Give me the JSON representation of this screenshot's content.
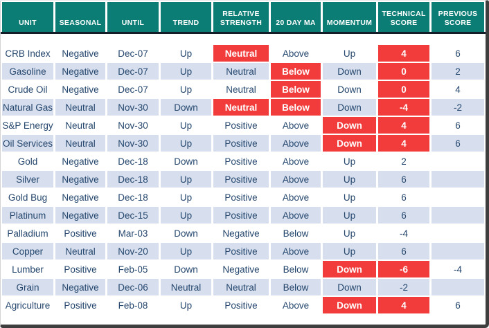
{
  "chart_data": {
    "type": "table",
    "columns": [
      {
        "key": "unit",
        "label": "UNIT"
      },
      {
        "key": "seasonal",
        "label": "SEASONAL"
      },
      {
        "key": "until",
        "label": "UNTIL"
      },
      {
        "key": "trend",
        "label": "TREND"
      },
      {
        "key": "relative_strength",
        "label": "RELATIVE STRENGTH"
      },
      {
        "key": "twenty_day_ma",
        "label": "20 DAY MA"
      },
      {
        "key": "momentum",
        "label": "MOMENTUM"
      },
      {
        "key": "technical_score",
        "label": "TECHNICAL SCORE"
      },
      {
        "key": "previous_score",
        "label": "PREVIOUS SCORE"
      }
    ],
    "rows": [
      {
        "unit": "CRB Index",
        "seasonal": "Negative",
        "until": "Dec-07",
        "trend": "Up",
        "relative_strength": "Neutral",
        "twenty_day_ma": "Above",
        "momentum": "Up",
        "technical_score": 4,
        "previous_score": 6,
        "highlights": [
          "relative_strength",
          "technical_score"
        ]
      },
      {
        "unit": "Gasoline",
        "seasonal": "Negative",
        "until": "Dec-07",
        "trend": "Up",
        "relative_strength": "Neutral",
        "twenty_day_ma": "Below",
        "momentum": "Down",
        "technical_score": 0,
        "previous_score": 2,
        "highlights": [
          "twenty_day_ma",
          "technical_score"
        ]
      },
      {
        "unit": "Crude Oil",
        "seasonal": "Negative",
        "until": "Dec-07",
        "trend": "Up",
        "relative_strength": "Neutral",
        "twenty_day_ma": "Below",
        "momentum": "Down",
        "technical_score": 0,
        "previous_score": 4,
        "highlights": [
          "twenty_day_ma",
          "technical_score"
        ]
      },
      {
        "unit": "Natural Gas",
        "seasonal": "Neutral",
        "until": "Nov-30",
        "trend": "Down",
        "relative_strength": "Neutral",
        "twenty_day_ma": "Below",
        "momentum": "Down",
        "technical_score": -4,
        "previous_score": -2,
        "highlights": [
          "relative_strength",
          "twenty_day_ma",
          "technical_score"
        ]
      },
      {
        "unit": "S&P Energy",
        "seasonal": "Neutral",
        "until": "Nov-30",
        "trend": "Up",
        "relative_strength": "Positive",
        "twenty_day_ma": "Above",
        "momentum": "Down",
        "technical_score": 4,
        "previous_score": 6,
        "highlights": [
          "momentum",
          "technical_score"
        ]
      },
      {
        "unit": "Oil Services",
        "seasonal": "Neutral",
        "until": "Nov-30",
        "trend": "Up",
        "relative_strength": "Positive",
        "twenty_day_ma": "Above",
        "momentum": "Down",
        "technical_score": 4,
        "previous_score": 6,
        "highlights": [
          "momentum",
          "technical_score"
        ]
      },
      {
        "unit": "Gold",
        "seasonal": "Negative",
        "until": "Dec-18",
        "trend": "Down",
        "relative_strength": "Positive",
        "twenty_day_ma": "Above",
        "momentum": "Up",
        "technical_score": 2,
        "previous_score": "",
        "highlights": []
      },
      {
        "unit": "Silver",
        "seasonal": "Negative",
        "until": "Dec-18",
        "trend": "Up",
        "relative_strength": "Positive",
        "twenty_day_ma": "Above",
        "momentum": "Up",
        "technical_score": 6,
        "previous_score": "",
        "highlights": []
      },
      {
        "unit": "Gold Bug",
        "seasonal": "Negative",
        "until": "Dec-18",
        "trend": "Up",
        "relative_strength": "Positive",
        "twenty_day_ma": "Above",
        "momentum": "Up",
        "technical_score": 6,
        "previous_score": "",
        "highlights": []
      },
      {
        "unit": "Platinum",
        "seasonal": "Negative",
        "until": "Dec-15",
        "trend": "Up",
        "relative_strength": "Positive",
        "twenty_day_ma": "Above",
        "momentum": "Up",
        "technical_score": 6,
        "previous_score": "",
        "highlights": []
      },
      {
        "unit": "Palladium",
        "seasonal": "Positive",
        "until": "Mar-03",
        "trend": "Down",
        "relative_strength": "Negative",
        "twenty_day_ma": "Below",
        "momentum": "Up",
        "technical_score": -4,
        "previous_score": "",
        "highlights": []
      },
      {
        "unit": "Copper",
        "seasonal": "Neutral",
        "until": "Nov-20",
        "trend": "Up",
        "relative_strength": "Positive",
        "twenty_day_ma": "Above",
        "momentum": "Up",
        "technical_score": 6,
        "previous_score": "",
        "highlights": []
      },
      {
        "unit": "Lumber",
        "seasonal": "Positive",
        "until": "Feb-05",
        "trend": "Down",
        "relative_strength": "Negative",
        "twenty_day_ma": "Below",
        "momentum": "Down",
        "technical_score": -6,
        "previous_score": -4,
        "highlights": [
          "momentum",
          "technical_score"
        ]
      },
      {
        "unit": "Grain",
        "seasonal": "Negative",
        "until": "Dec-06",
        "trend": "Neutral",
        "relative_strength": "Neutral",
        "twenty_day_ma": "Below",
        "momentum": "Down",
        "technical_score": -2,
        "previous_score": "",
        "highlights": []
      },
      {
        "unit": "Agriculture",
        "seasonal": "Positive",
        "until": "Feb-08",
        "trend": "Up",
        "relative_strength": "Positive",
        "twenty_day_ma": "Above",
        "momentum": "Down",
        "technical_score": 4,
        "previous_score": 6,
        "highlights": [
          "momentum",
          "technical_score"
        ]
      }
    ]
  },
  "colors": {
    "header_bg": "#0b7d75",
    "header_text": "#ffffff",
    "highlight_bg": "#f23c3c",
    "alt_row_bg": "#d7dfee",
    "text": "#24466d",
    "divider": "#141d2a",
    "frame_border": "#3e3e3e"
  }
}
